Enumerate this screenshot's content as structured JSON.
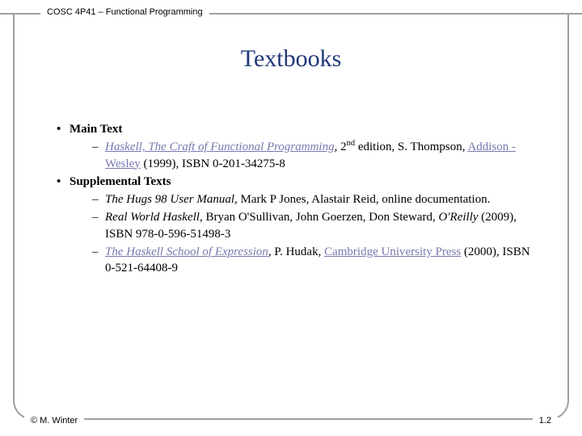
{
  "header": {
    "course_label": "COSC 4P41 – Functional Programming"
  },
  "title": "Textbooks",
  "sections": {
    "main_heading": "Main Text",
    "main_items": [
      {
        "title_link": "Haskell, The Craft of Functional Programming",
        "after_title": ", 2",
        "sup": "nd",
        "after_sup": " edition, S. Thompson, ",
        "publisher_link": "Addison - Wesley",
        "tail": " (1999), ISBN 0-201-34275-8"
      }
    ],
    "supp_heading": "Supplemental Texts",
    "supp_items": [
      {
        "title_italic": "The Hugs 98 User Manual",
        "tail": ", Mark P Jones, Alastair Reid, online documentation."
      },
      {
        "title_italic": "Real World Haskell",
        "mid": ", Bryan O'Sullivan, John Goerzen, Don Steward, ",
        "publisher_italic": "O'Reilly",
        "tail": " (2009), ISBN 978-0-596-51498-3"
      },
      {
        "title_link": "The Haskell School of Expression",
        "mid": ", P. Hudak, ",
        "publisher_link": "Cambridge University Press",
        "tail": " (2000), ISBN 0-521-64408-9"
      }
    ]
  },
  "footer": {
    "copyright": "© M. Winter",
    "page_number": "1.2"
  },
  "colors": {
    "title_color": "#203878",
    "link_color": "#7878b0",
    "frame_color": "#a0a0a0",
    "text_color": "#000000",
    "background": "#ffffff"
  }
}
